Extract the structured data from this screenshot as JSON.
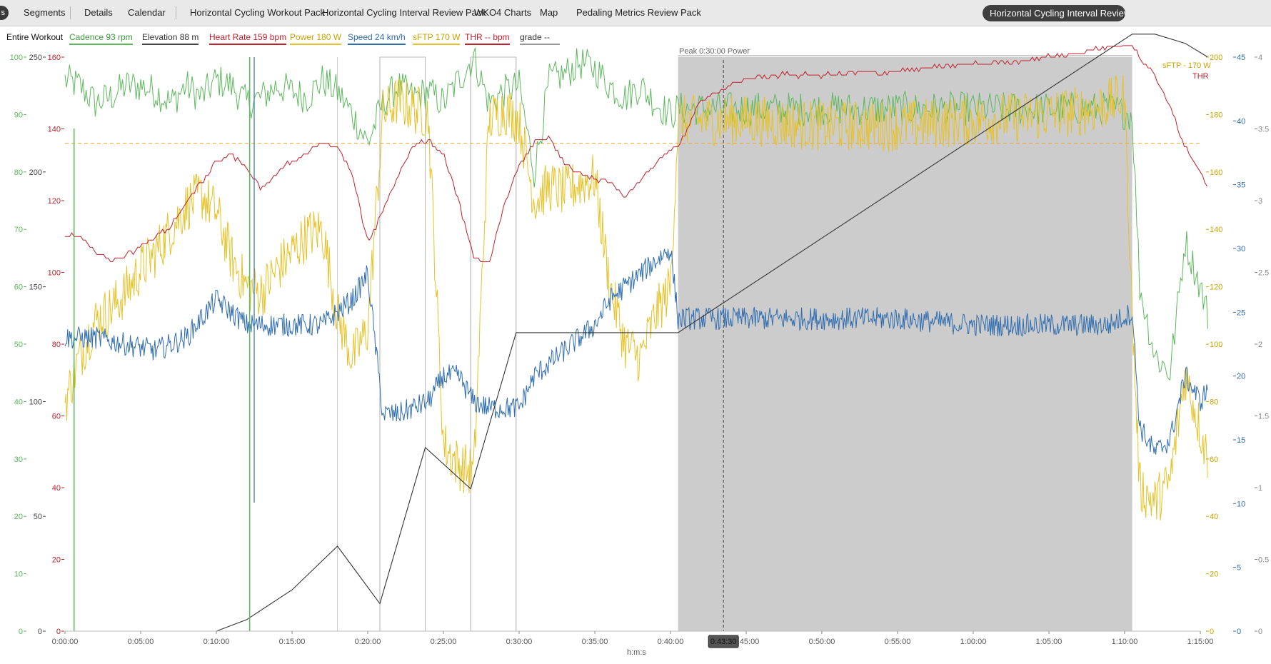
{
  "tabs": {
    "corner_label": "s",
    "items": [
      {
        "label": "Segments"
      },
      {
        "label": "Details"
      },
      {
        "label": "Calendar"
      },
      {
        "label": "Horizontal Cycling Workout Pack"
      },
      {
        "label": "Horizontal Cycling Interval Review Pack"
      },
      {
        "label": "WKO4 Charts"
      },
      {
        "label": "Map"
      },
      {
        "label": "Pedaling Metrics Review Pack"
      }
    ],
    "active_chart": "Horizontal Cycling Interval Review Pack"
  },
  "legend": {
    "range": "Entire Workout",
    "items": [
      {
        "label": "Cadence  93 rpm",
        "color": "#5cb85c"
      },
      {
        "label": "Elevation  88 m",
        "color": "#444444"
      },
      {
        "label": "Heart Rate  159 bpm",
        "color": "#c0202b"
      },
      {
        "label": "Power  180 W",
        "color": "#e6c229"
      },
      {
        "label": "Speed  24 km/h",
        "color": "#2f6db0"
      },
      {
        "label": "sFTP  170 W",
        "color": "#e6c229"
      },
      {
        "label": "THR  -- bpm",
        "color": "#c0202b"
      },
      {
        "label": "grade  --",
        "color": "#999999"
      }
    ]
  },
  "chart": {
    "selection_label": "Peak 0:30:00 Power",
    "cursor_time": "0:43:30",
    "x_axis_label": "h:m:s",
    "ref_labels": {
      "sftp": "sFTP - 170 W",
      "thr": "THR"
    }
  },
  "chart_data": {
    "type": "line",
    "x_unit": "h:m:s",
    "x_range_minutes": [
      0,
      75
    ],
    "x_ticks": [
      "0:00:00",
      "0:05:00",
      "0:10:00",
      "0:15:00",
      "0:20:00",
      "0:25:00",
      "0:30:00",
      "0:35:00",
      "0:40:00",
      "0:45:00",
      "0:50:00",
      "0:55:00",
      "1:00:00",
      "1:05:00",
      "1:10:00",
      "1:15:00"
    ],
    "selection_minutes": [
      40.5,
      70.5
    ],
    "cursor_minutes": 43.5,
    "interval_markers_minutes": [
      18,
      20.8,
      23.8,
      26.8,
      29.8
    ],
    "axes": {
      "cadence_left": {
        "color": "#5cb85c",
        "range": [
          0,
          100
        ],
        "ticks": [
          0,
          10,
          20,
          30,
          40,
          50,
          60,
          70,
          80,
          90,
          100
        ]
      },
      "elevation_left": {
        "color": "#555555",
        "range": [
          0,
          250
        ],
        "ticks": [
          0,
          50,
          100,
          150,
          200,
          250
        ]
      },
      "hr_left": {
        "color": "#c0202b",
        "range": [
          0,
          160
        ],
        "ticks": [
          0,
          20,
          40,
          60,
          80,
          100,
          120,
          140,
          160
        ]
      },
      "power_right": {
        "color": "#e6c229",
        "range": [
          0,
          200
        ],
        "ticks": [
          0,
          20,
          40,
          60,
          80,
          100,
          120,
          140,
          160,
          180,
          200
        ]
      },
      "speed_right": {
        "color": "#2f6db0",
        "range": [
          0,
          45
        ],
        "ticks": [
          0,
          5,
          10,
          15,
          20,
          25,
          30,
          35,
          40,
          45
        ]
      },
      "grade_right": {
        "color": "#999999",
        "range": [
          0,
          4
        ],
        "ticks": [
          0,
          0.5,
          1,
          1.5,
          2,
          2.5,
          3,
          3.5,
          4
        ]
      }
    },
    "reference_lines": {
      "sftp_w": 170,
      "thr_bpm": 137
    },
    "series": [
      {
        "name": "Heart Rate",
        "unit": "bpm",
        "axis": "hr_left",
        "color": "#c0202b",
        "points": [
          [
            0,
            110
          ],
          [
            1,
            110
          ],
          [
            2,
            106
          ],
          [
            3,
            103
          ],
          [
            5,
            107
          ],
          [
            7,
            113
          ],
          [
            9,
            125
          ],
          [
            10,
            131
          ],
          [
            11,
            133
          ],
          [
            12,
            129
          ],
          [
            13,
            123
          ],
          [
            14,
            128
          ],
          [
            15,
            131
          ],
          [
            17,
            136
          ],
          [
            18,
            135
          ],
          [
            19,
            127
          ],
          [
            20,
            108
          ],
          [
            21,
            117
          ],
          [
            22,
            127
          ],
          [
            23,
            135
          ],
          [
            24,
            137
          ],
          [
            25,
            133
          ],
          [
            26,
            120
          ],
          [
            27,
            104
          ],
          [
            28,
            102
          ],
          [
            29,
            119
          ],
          [
            30,
            130
          ],
          [
            31,
            136
          ],
          [
            32,
            138
          ],
          [
            33,
            130
          ],
          [
            34,
            128
          ],
          [
            35,
            126
          ],
          [
            36,
            125
          ],
          [
            37,
            121
          ],
          [
            38,
            126
          ],
          [
            39,
            130
          ],
          [
            40,
            134
          ],
          [
            40.5,
            135
          ],
          [
            42,
            148
          ],
          [
            43,
            150
          ],
          [
            44,
            152
          ],
          [
            45,
            154
          ],
          [
            47,
            155
          ],
          [
            50,
            155
          ],
          [
            55,
            156
          ],
          [
            60,
            158
          ],
          [
            63,
            159
          ],
          [
            65,
            160
          ],
          [
            67,
            161
          ],
          [
            69,
            163
          ],
          [
            70.5,
            164
          ],
          [
            71,
            160
          ],
          [
            72,
            155
          ],
          [
            73,
            146
          ],
          [
            74,
            135
          ],
          [
            75,
            128
          ],
          [
            75.5,
            124
          ]
        ]
      },
      {
        "name": "Power",
        "unit": "W",
        "axis": "power_right",
        "color": "#e6c229",
        "points": [
          [
            0,
            80
          ],
          [
            1,
            96
          ],
          [
            2,
            108
          ],
          [
            3,
            112
          ],
          [
            4,
            118
          ],
          [
            5,
            126
          ],
          [
            6,
            132
          ],
          [
            7,
            140
          ],
          [
            8,
            148
          ],
          [
            9,
            152
          ],
          [
            10,
            146
          ],
          [
            11,
            130
          ],
          [
            12,
            120
          ],
          [
            13,
            118
          ],
          [
            14,
            126
          ],
          [
            15,
            132
          ],
          [
            16,
            138
          ],
          [
            17,
            140
          ],
          [
            18,
            110
          ],
          [
            19,
            95
          ],
          [
            20,
            105
          ],
          [
            21,
            180
          ],
          [
            22,
            185
          ],
          [
            23,
            182
          ],
          [
            24,
            180
          ],
          [
            25,
            65
          ],
          [
            26,
            58
          ],
          [
            27,
            55
          ],
          [
            28,
            178
          ],
          [
            29,
            182
          ],
          [
            30,
            178
          ],
          [
            31,
            150
          ],
          [
            32,
            155
          ],
          [
            33,
            153
          ],
          [
            34,
            156
          ],
          [
            35,
            158
          ],
          [
            36,
            120
          ],
          [
            37,
            100
          ],
          [
            38,
            95
          ],
          [
            39,
            110
          ],
          [
            40,
            120
          ],
          [
            40.5,
            178
          ],
          [
            45,
            178
          ],
          [
            50,
            176
          ],
          [
            55,
            176
          ],
          [
            60,
            178
          ],
          [
            65,
            180
          ],
          [
            68,
            182
          ],
          [
            70,
            186
          ],
          [
            70.5,
            110
          ],
          [
            71,
            50
          ],
          [
            72,
            45
          ],
          [
            73,
            52
          ],
          [
            74,
            90
          ],
          [
            75,
            70
          ],
          [
            75.5,
            60
          ]
        ]
      },
      {
        "name": "Speed",
        "unit": "km/h",
        "axis": "speed_right",
        "color": "#2f6db0",
        "points": [
          [
            0,
            23
          ],
          [
            2,
            23
          ],
          [
            4,
            22.5
          ],
          [
            6,
            22
          ],
          [
            8,
            23
          ],
          [
            10,
            26
          ],
          [
            11,
            25
          ],
          [
            12,
            24
          ],
          [
            13,
            24
          ],
          [
            15,
            24
          ],
          [
            17,
            24
          ],
          [
            18,
            25
          ],
          [
            19,
            26
          ],
          [
            20,
            28
          ],
          [
            21,
            17
          ],
          [
            22,
            17
          ],
          [
            23,
            17.5
          ],
          [
            24,
            18
          ],
          [
            25,
            20
          ],
          [
            26,
            20
          ],
          [
            27,
            18
          ],
          [
            28,
            17.5
          ],
          [
            29,
            17.5
          ],
          [
            30,
            17.5
          ],
          [
            31,
            20
          ],
          [
            32,
            21
          ],
          [
            33,
            22
          ],
          [
            34,
            23
          ],
          [
            35,
            24
          ],
          [
            36,
            26
          ],
          [
            37,
            27
          ],
          [
            38,
            28
          ],
          [
            39,
            29
          ],
          [
            40,
            30
          ],
          [
            40.5,
            24.5
          ],
          [
            45,
            24.5
          ],
          [
            50,
            24.5
          ],
          [
            55,
            24.5
          ],
          [
            60,
            24
          ],
          [
            65,
            24
          ],
          [
            69,
            24
          ],
          [
            70.5,
            25
          ],
          [
            71,
            16
          ],
          [
            72,
            14
          ],
          [
            73,
            15
          ],
          [
            74,
            20
          ],
          [
            75,
            18
          ],
          [
            75.5,
            19
          ]
        ]
      },
      {
        "name": "Cadence",
        "unit": "rpm",
        "axis": "cadence_left",
        "color": "#5cb85c",
        "points": [
          [
            0,
            96
          ],
          [
            1,
            95
          ],
          [
            2,
            92
          ],
          [
            3,
            93
          ],
          [
            4,
            95
          ],
          [
            5,
            95
          ],
          [
            6,
            94
          ],
          [
            7,
            92
          ],
          [
            8,
            95
          ],
          [
            9,
            93
          ],
          [
            10,
            96
          ],
          [
            11,
            95
          ],
          [
            12,
            92
          ],
          [
            13,
            93
          ],
          [
            14,
            95
          ],
          [
            15,
            94
          ],
          [
            16,
            93
          ],
          [
            17,
            96
          ],
          [
            18,
            94
          ],
          [
            19,
            90
          ],
          [
            20,
            85
          ],
          [
            21,
            92
          ],
          [
            22,
            95
          ],
          [
            23,
            93
          ],
          [
            24,
            94
          ],
          [
            25,
            92
          ],
          [
            26,
            96
          ],
          [
            27,
            100
          ],
          [
            28,
            92
          ],
          [
            29,
            94
          ],
          [
            30,
            95
          ],
          [
            31,
            80
          ],
          [
            32,
            96
          ],
          [
            33,
            97
          ],
          [
            34,
            99
          ],
          [
            35,
            98
          ],
          [
            36,
            95
          ],
          [
            37,
            93
          ],
          [
            38,
            95
          ],
          [
            39,
            92
          ],
          [
            40,
            90
          ],
          [
            40.5,
            91
          ],
          [
            45,
            91
          ],
          [
            50,
            91
          ],
          [
            55,
            91
          ],
          [
            60,
            91
          ],
          [
            65,
            91
          ],
          [
            69,
            91
          ],
          [
            70.5,
            90
          ],
          [
            71,
            60
          ],
          [
            72,
            48
          ],
          [
            73,
            45
          ],
          [
            74,
            68
          ],
          [
            75,
            60
          ],
          [
            75.5,
            55
          ]
        ]
      },
      {
        "name": "Elevation",
        "unit": "m",
        "axis": "elevation_left",
        "color": "#333333",
        "points": [
          [
            10,
            0
          ],
          [
            12,
            5
          ],
          [
            15,
            18
          ],
          [
            18,
            37
          ],
          [
            20.8,
            12
          ],
          [
            23.8,
            80
          ],
          [
            26.8,
            62
          ],
          [
            29.8,
            130
          ],
          [
            40.5,
            130
          ],
          [
            70.5,
            260
          ],
          [
            72,
            260
          ],
          [
            74,
            256
          ],
          [
            75.5,
            250
          ]
        ]
      }
    ]
  }
}
